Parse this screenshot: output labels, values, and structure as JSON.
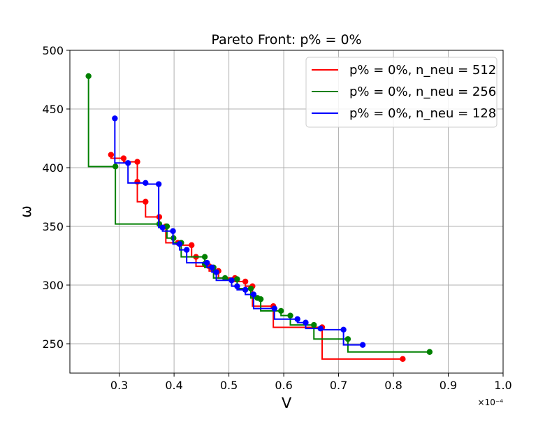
{
  "chart_data": {
    "type": "line",
    "title": "Pareto Front:  p% = 0%",
    "xlabel": "V",
    "ylabel": "ω",
    "x_scale_label": "×10⁻⁴",
    "xlim": [
      0.21,
      1.0
    ],
    "ylim": [
      225,
      500
    ],
    "x_ticks": [
      0.3,
      0.4,
      0.5,
      0.6,
      0.7,
      0.8,
      0.9,
      1.0
    ],
    "x_tick_labels": [
      "0.3",
      "0.4",
      "0.5",
      "0.6",
      "0.7",
      "0.8",
      "0.9",
      "1.0"
    ],
    "y_ticks": [
      250,
      300,
      350,
      400,
      450,
      500
    ],
    "y_tick_labels": [
      "250",
      "300",
      "350",
      "400",
      "450",
      "500"
    ],
    "grid": true,
    "legend_position": "top-right",
    "step_style": "upper-right staircase connecting consecutive Pareto points",
    "series": [
      {
        "name": "p% = 0%,  n_neu = 512",
        "color": "#ff0000",
        "points": [
          [
            0.285,
            411
          ],
          [
            0.308,
            408
          ],
          [
            0.333,
            405
          ],
          [
            0.333,
            388
          ],
          [
            0.348,
            371
          ],
          [
            0.373,
            358
          ],
          [
            0.385,
            350
          ],
          [
            0.407,
            336
          ],
          [
            0.432,
            334
          ],
          [
            0.44,
            324
          ],
          [
            0.464,
            316
          ],
          [
            0.481,
            312
          ],
          [
            0.511,
            306
          ],
          [
            0.53,
            303
          ],
          [
            0.543,
            299
          ],
          [
            0.581,
            282
          ],
          [
            0.67,
            264
          ],
          [
            0.817,
            237
          ]
        ]
      },
      {
        "name": "p% = 0%,  n_neu = 256",
        "color": "#008000",
        "points": [
          [
            0.244,
            478
          ],
          [
            0.293,
            401
          ],
          [
            0.373,
            352
          ],
          [
            0.387,
            350
          ],
          [
            0.399,
            340
          ],
          [
            0.413,
            336
          ],
          [
            0.456,
            324
          ],
          [
            0.456,
            318
          ],
          [
            0.472,
            315
          ],
          [
            0.493,
            306
          ],
          [
            0.515,
            305
          ],
          [
            0.54,
            297
          ],
          [
            0.552,
            289
          ],
          [
            0.558,
            288
          ],
          [
            0.595,
            278
          ],
          [
            0.612,
            274
          ],
          [
            0.655,
            266
          ],
          [
            0.717,
            254
          ],
          [
            0.866,
            243
          ]
        ]
      },
      {
        "name": "p% = 0%,  n_neu = 128",
        "color": "#0000ff",
        "points": [
          [
            0.292,
            442
          ],
          [
            0.316,
            404
          ],
          [
            0.348,
            387
          ],
          [
            0.372,
            386
          ],
          [
            0.379,
            349
          ],
          [
            0.398,
            346
          ],
          [
            0.41,
            335
          ],
          [
            0.423,
            330
          ],
          [
            0.46,
            319
          ],
          [
            0.469,
            315
          ],
          [
            0.477,
            311
          ],
          [
            0.505,
            304
          ],
          [
            0.515,
            299
          ],
          [
            0.53,
            296
          ],
          [
            0.545,
            292
          ],
          [
            0.583,
            280
          ],
          [
            0.625,
            271
          ],
          [
            0.64,
            268
          ],
          [
            0.667,
            263
          ],
          [
            0.709,
            262
          ],
          [
            0.744,
            249
          ]
        ]
      }
    ]
  }
}
